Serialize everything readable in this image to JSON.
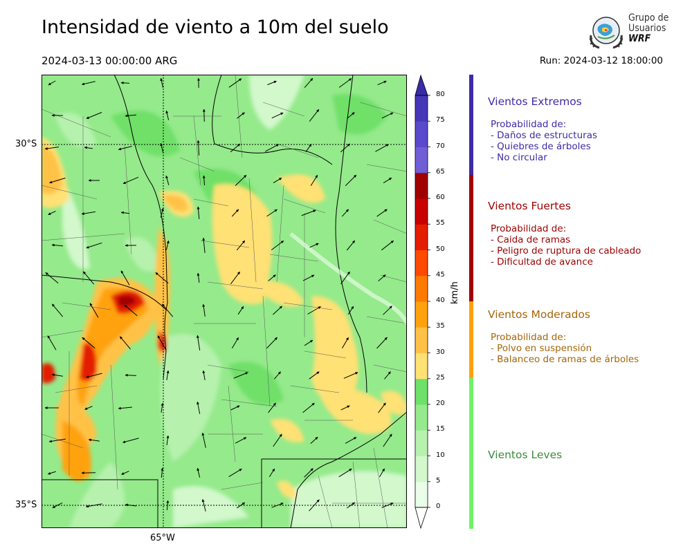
{
  "header": {
    "title": "Intensidad de viento a 10m del suelo",
    "valid_time": "2024-03-13 00:00:00 ARG",
    "run": "Run: 2024-03-12 18:00:00"
  },
  "logo": {
    "line1": "Grupo de",
    "line2": "Usuarios",
    "line3": "WRF"
  },
  "map": {
    "lat_labels": [
      "30°S",
      "35°S"
    ],
    "lon_labels": [
      "65°W"
    ]
  },
  "colorbar": {
    "unit": "km/h",
    "ticks": [
      "0",
      "5",
      "10",
      "15",
      "20",
      "25",
      "30",
      "35",
      "40",
      "45",
      "50",
      "55",
      "60",
      "65",
      "70",
      "75",
      "80"
    ],
    "colors": [
      "#eafde8",
      "#d2f8cc",
      "#b6f2ae",
      "#95ea8b",
      "#6fe069",
      "#ffe174",
      "#ffc247",
      "#ffa20e",
      "#ff7a00",
      "#ff4a00",
      "#e41e00",
      "#c70000",
      "#a00000",
      "#6f5ed6",
      "#5a49cc",
      "#4636b8"
    ],
    "top_color": "#3a2ba8"
  },
  "categories": [
    {
      "title": "Vientos Extremos",
      "color": "#3f2aa6",
      "lines": [
        "Probabilidad de:",
        "- Daños de estructuras",
        "- Quiebres de árboles",
        "- No circular"
      ]
    },
    {
      "title": "Vientos Fuertes",
      "color": "#9c0000",
      "lines": [
        "Probabilidad de:",
        "- Caida de ramas",
        "- Peligro de ruptura de cableado",
        "- Dificultad de avance"
      ]
    },
    {
      "title": "Vientos Moderados",
      "color": "#a5660a",
      "lines": [
        "Probabilidad de:",
        "- Polvo en suspensión",
        "- Balanceo de ramas de árboles"
      ]
    },
    {
      "title": "Vientos Leves",
      "color": "#3d8a3d",
      "lines": []
    }
  ],
  "category_bar_colors": [
    "#3f2aa6",
    "#a10000",
    "#ffa20e",
    "#6ff26a"
  ]
}
